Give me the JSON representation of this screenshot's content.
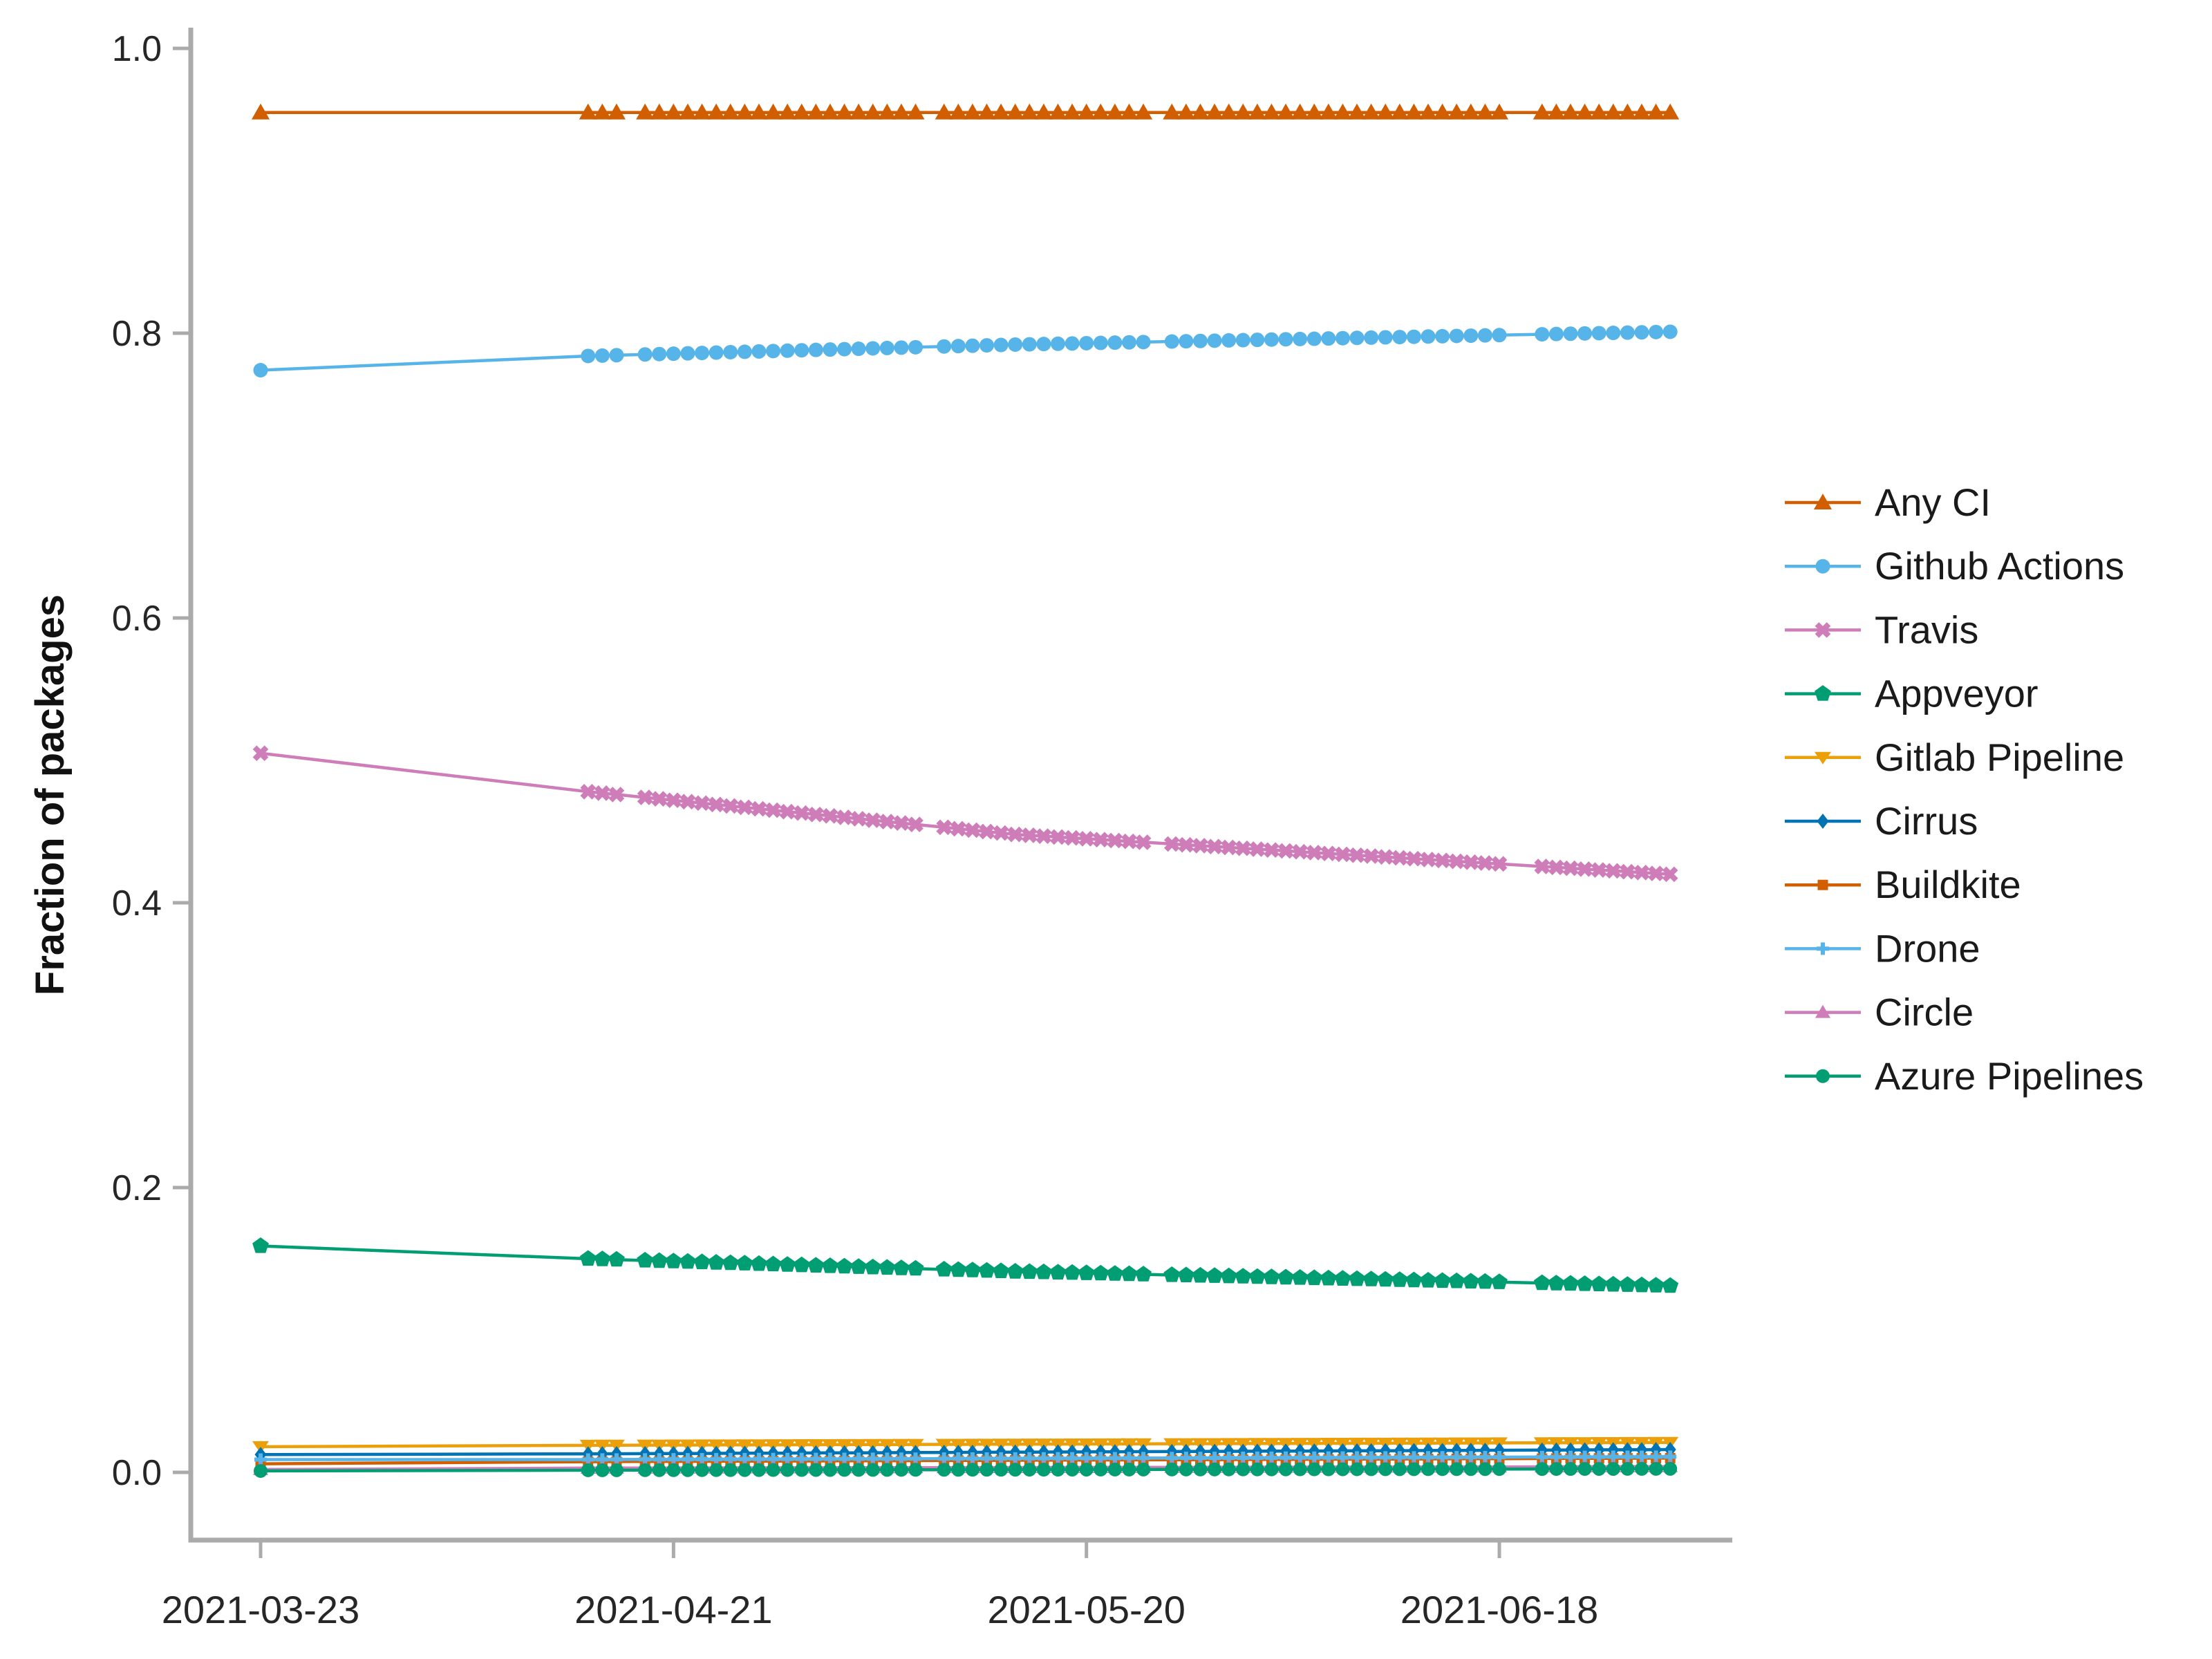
{
  "chart_data": {
    "type": "line",
    "title": "",
    "xlabel": "",
    "ylabel": "Fraction of packages",
    "ylim": [
      0.0,
      1.0
    ],
    "grid": false,
    "legend_position": "right-outside",
    "y_ticks": [
      {
        "v": 0.0,
        "label": "0.0"
      },
      {
        "v": 0.2,
        "label": "0.2"
      },
      {
        "v": 0.4,
        "label": "0.4"
      },
      {
        "v": 0.6,
        "label": "0.6"
      },
      {
        "v": 0.8,
        "label": "0.8"
      },
      {
        "v": 1.0,
        "label": "1.0"
      }
    ],
    "x_ticks": [
      "2021-03-23",
      "2021-04-21",
      "2021-05-20",
      "2021-06-18"
    ],
    "x_range": [
      "2021-03-23",
      "2021-06-30"
    ],
    "dates": [
      "2021-03-23",
      "2021-04-15",
      "2021-04-16",
      "2021-04-17",
      "2021-04-19",
      "2021-04-20",
      "2021-04-21",
      "2021-04-22",
      "2021-04-23",
      "2021-04-24",
      "2021-04-25",
      "2021-04-26",
      "2021-04-27",
      "2021-04-28",
      "2021-04-29",
      "2021-04-30",
      "2021-05-01",
      "2021-05-02",
      "2021-05-03",
      "2021-05-04",
      "2021-05-05",
      "2021-05-06",
      "2021-05-07",
      "2021-05-08",
      "2021-05-10",
      "2021-05-11",
      "2021-05-12",
      "2021-05-13",
      "2021-05-14",
      "2021-05-15",
      "2021-05-16",
      "2021-05-17",
      "2021-05-18",
      "2021-05-19",
      "2021-05-20",
      "2021-05-21",
      "2021-05-22",
      "2021-05-23",
      "2021-05-24",
      "2021-05-26",
      "2021-05-27",
      "2021-05-28",
      "2021-05-29",
      "2021-05-30",
      "2021-05-31",
      "2021-06-01",
      "2021-06-02",
      "2021-06-03",
      "2021-06-04",
      "2021-06-05",
      "2021-06-06",
      "2021-06-07",
      "2021-06-08",
      "2021-06-09",
      "2021-06-10",
      "2021-06-11",
      "2021-06-12",
      "2021-06-13",
      "2021-06-14",
      "2021-06-15",
      "2021-06-16",
      "2021-06-17",
      "2021-06-18",
      "2021-06-21",
      "2021-06-22",
      "2021-06-23",
      "2021-06-24",
      "2021-06-25",
      "2021-06-26",
      "2021-06-27",
      "2021-06-28",
      "2021-06-29",
      "2021-06-30"
    ],
    "series": [
      {
        "name": "Any CI",
        "color": "#D25E02",
        "marker": "triangle-up",
        "anchors": [
          [
            "2021-03-23",
            0.955
          ],
          [
            "2021-06-30",
            0.955
          ]
        ]
      },
      {
        "name": "Github Actions",
        "color": "#56B4E9",
        "marker": "circle",
        "anchors": [
          [
            "2021-03-23",
            0.774
          ],
          [
            "2021-04-15",
            0.784
          ],
          [
            "2021-05-15",
            0.792
          ],
          [
            "2021-06-30",
            0.801
          ]
        ]
      },
      {
        "name": "Travis",
        "color": "#CE7DB9",
        "marker": "x",
        "anchors": [
          [
            "2021-03-23",
            0.505
          ],
          [
            "2021-04-15",
            0.478
          ],
          [
            "2021-05-15",
            0.448
          ],
          [
            "2021-06-30",
            0.42
          ]
        ]
      },
      {
        "name": "Appveyor",
        "color": "#029E73",
        "marker": "pentagon",
        "anchors": [
          [
            "2021-03-23",
            0.159
          ],
          [
            "2021-04-15",
            0.15
          ],
          [
            "2021-05-15",
            0.141
          ],
          [
            "2021-06-30",
            0.131
          ]
        ]
      },
      {
        "name": "Gitlab Pipeline",
        "color": "#EBA00A",
        "marker": "triangle-down",
        "anchors": [
          [
            "2021-03-23",
            0.018
          ],
          [
            "2021-04-15",
            0.019
          ],
          [
            "2021-06-30",
            0.021
          ]
        ]
      },
      {
        "name": "Cirrus",
        "color": "#0173B2",
        "marker": "diamond",
        "anchors": [
          [
            "2021-03-23",
            0.0125
          ],
          [
            "2021-04-15",
            0.013
          ],
          [
            "2021-06-30",
            0.016
          ]
        ]
      },
      {
        "name": "Buildkite",
        "color": "#D25E02",
        "marker": "square",
        "anchors": [
          [
            "2021-03-23",
            0.006
          ],
          [
            "2021-04-15",
            0.0075
          ],
          [
            "2021-06-30",
            0.01
          ]
        ]
      },
      {
        "name": "Drone",
        "color": "#56B4E9",
        "marker": "plus",
        "anchors": [
          [
            "2021-03-23",
            0.009
          ],
          [
            "2021-04-15",
            0.009
          ],
          [
            "2021-06-30",
            0.011
          ]
        ]
      },
      {
        "name": "Circle",
        "color": "#CE7DB9",
        "marker": "triangle-up-small",
        "anchors": [
          [
            "2021-03-23",
            0.002
          ],
          [
            "2021-04-15",
            0.003
          ],
          [
            "2021-06-30",
            0.004
          ]
        ]
      },
      {
        "name": "Azure Pipelines",
        "color": "#029E73",
        "marker": "circle-small",
        "anchors": [
          [
            "2021-03-23",
            0.001
          ],
          [
            "2021-04-15",
            0.0015
          ],
          [
            "2021-06-30",
            0.0025
          ]
        ]
      }
    ]
  }
}
